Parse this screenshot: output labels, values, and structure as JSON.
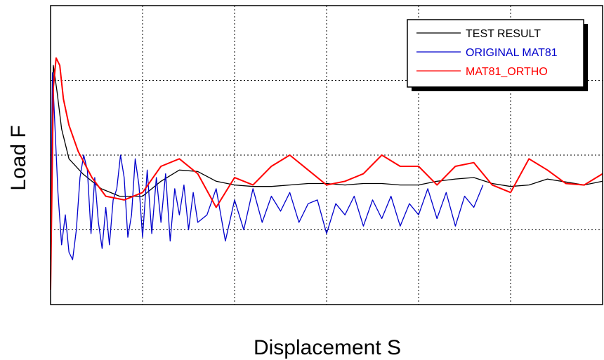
{
  "chart_data": {
    "type": "line",
    "title": "",
    "xlabel": "Displacement  S",
    "ylabel": "Load  F",
    "xlim": [
      0,
      6
    ],
    "ylim": [
      0,
      4
    ],
    "grid": true,
    "grid_style": "dotted",
    "x_tick_labels_visible": false,
    "y_tick_labels_visible": false,
    "legend": {
      "placement": "top-right",
      "entries": [
        {
          "name": "TEST RESULT",
          "color": "#000000"
        },
        {
          "name": "ORIGINAL MAT81",
          "color": "#0000cc"
        },
        {
          "name": "MAT81_ORTHO",
          "color": "#ff0000"
        }
      ]
    },
    "series": [
      {
        "name": "TEST RESULT",
        "color": "#000000",
        "x": [
          0.0,
          0.03,
          0.07,
          0.12,
          0.2,
          0.35,
          0.55,
          0.75,
          1.0,
          1.2,
          1.4,
          1.6,
          1.8,
          2.0,
          2.2,
          2.4,
          2.6,
          2.8,
          3.0,
          3.2,
          3.4,
          3.6,
          3.8,
          4.0,
          4.2,
          4.4,
          4.6,
          4.8,
          5.0,
          5.2,
          5.4,
          5.6,
          5.8,
          6.0
        ],
        "y": [
          0.6,
          3.2,
          2.85,
          2.35,
          1.95,
          1.75,
          1.55,
          1.45,
          1.45,
          1.65,
          1.8,
          1.78,
          1.65,
          1.6,
          1.58,
          1.58,
          1.6,
          1.62,
          1.62,
          1.6,
          1.62,
          1.62,
          1.6,
          1.6,
          1.65,
          1.68,
          1.7,
          1.62,
          1.58,
          1.6,
          1.68,
          1.64,
          1.6,
          1.65
        ]
      },
      {
        "name": "ORIGINAL MAT81",
        "color": "#0000cc",
        "x": [
          0.0,
          0.02,
          0.04,
          0.08,
          0.12,
          0.16,
          0.2,
          0.24,
          0.28,
          0.32,
          0.36,
          0.4,
          0.44,
          0.48,
          0.52,
          0.56,
          0.6,
          0.64,
          0.68,
          0.72,
          0.76,
          0.8,
          0.84,
          0.88,
          0.92,
          0.96,
          1.0,
          1.05,
          1.1,
          1.15,
          1.2,
          1.25,
          1.3,
          1.35,
          1.4,
          1.45,
          1.5,
          1.55,
          1.6,
          1.7,
          1.8,
          1.9,
          2.0,
          2.1,
          2.2,
          2.3,
          2.4,
          2.5,
          2.6,
          2.7,
          2.8,
          2.9,
          3.0,
          3.1,
          3.2,
          3.3,
          3.4,
          3.5,
          3.6,
          3.7,
          3.8,
          3.9,
          4.0,
          4.1,
          4.2,
          4.3,
          4.4,
          4.5,
          4.6,
          4.7
        ],
        "y": [
          0.3,
          3.1,
          2.6,
          1.5,
          0.8,
          1.2,
          0.7,
          0.6,
          1.0,
          1.7,
          2.0,
          1.8,
          0.95,
          1.7,
          1.1,
          0.75,
          1.3,
          0.8,
          1.4,
          1.55,
          2.0,
          1.7,
          0.9,
          1.2,
          1.95,
          1.6,
          0.9,
          1.8,
          0.95,
          1.7,
          1.1,
          1.75,
          0.85,
          1.55,
          1.2,
          1.6,
          1.0,
          1.5,
          1.1,
          1.2,
          1.55,
          0.85,
          1.4,
          1.0,
          1.55,
          1.1,
          1.45,
          1.25,
          1.5,
          1.1,
          1.35,
          1.4,
          0.95,
          1.35,
          1.2,
          1.45,
          1.05,
          1.4,
          1.15,
          1.45,
          1.05,
          1.35,
          1.2,
          1.55,
          1.15,
          1.5,
          1.05,
          1.45,
          1.3,
          1.6
        ]
      },
      {
        "name": "MAT81_ORTHO",
        "color": "#ff0000",
        "x": [
          0.0,
          0.03,
          0.06,
          0.1,
          0.14,
          0.2,
          0.3,
          0.45,
          0.6,
          0.8,
          1.0,
          1.2,
          1.4,
          1.6,
          1.8,
          2.0,
          2.2,
          2.4,
          2.6,
          2.8,
          3.0,
          3.2,
          3.4,
          3.6,
          3.8,
          4.0,
          4.2,
          4.4,
          4.6,
          4.8,
          5.0,
          5.2,
          5.4,
          5.6,
          5.8,
          6.0
        ],
        "y": [
          0.2,
          2.9,
          3.3,
          3.2,
          2.75,
          2.4,
          2.05,
          1.7,
          1.45,
          1.4,
          1.5,
          1.85,
          1.95,
          1.75,
          1.3,
          1.7,
          1.6,
          1.85,
          2.0,
          1.8,
          1.6,
          1.65,
          1.75,
          2.0,
          1.85,
          1.85,
          1.6,
          1.85,
          1.9,
          1.6,
          1.5,
          1.95,
          1.8,
          1.62,
          1.6,
          1.75
        ]
      }
    ]
  }
}
